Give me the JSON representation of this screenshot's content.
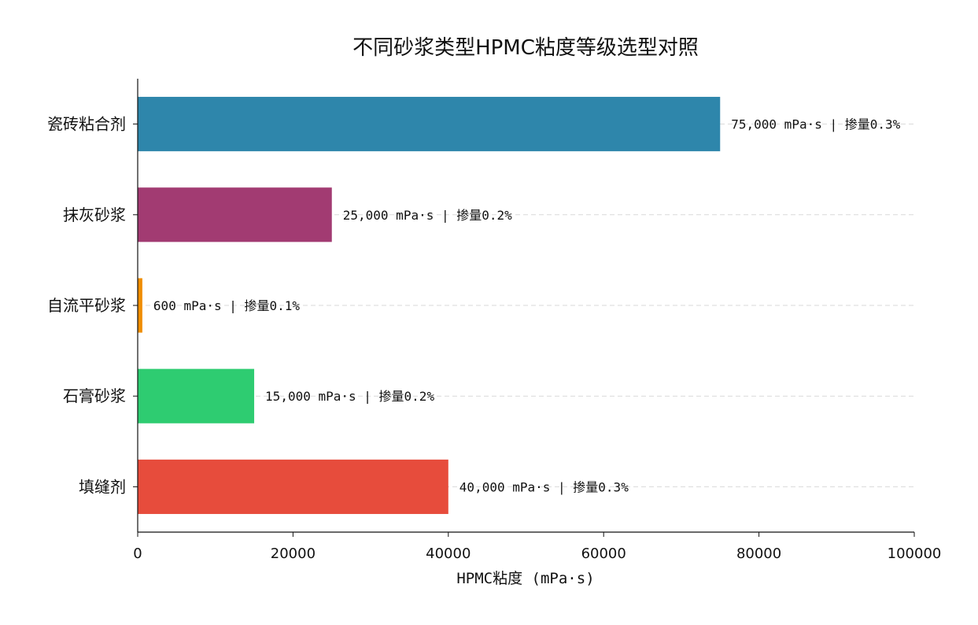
{
  "chart_data": {
    "type": "bar",
    "orientation": "horizontal",
    "title": "不同砂浆类型HPMC粘度等级选型对照",
    "xlabel": "HPMC粘度 (mPa·s)",
    "ylabel": "",
    "xlim": [
      0,
      100000
    ],
    "xticks": [
      0,
      20000,
      40000,
      60000,
      80000,
      100000
    ],
    "xtick_labels": [
      "0",
      "20000",
      "40000",
      "60000",
      "80000",
      "100000"
    ],
    "grid": "horizontal dashed",
    "legend": "none",
    "categories": [
      "瓷砖粘合剂",
      "抹灰砂浆",
      "自流平砂浆",
      "石膏砂浆",
      "填缝剂"
    ],
    "values": [
      75000,
      25000,
      600,
      15000,
      40000
    ],
    "colors": [
      "#2e86ab",
      "#a23b72",
      "#f18f01",
      "#2ecc71",
      "#e74c3c"
    ],
    "data_labels": [
      "75,000 mPa·s | 掺量0.3%",
      "25,000 mPa·s | 掺量0.2%",
      "600 mPa·s | 掺量0.1%",
      "15,000 mPa·s | 掺量0.2%",
      "40,000 mPa·s | 掺量0.3%"
    ]
  }
}
